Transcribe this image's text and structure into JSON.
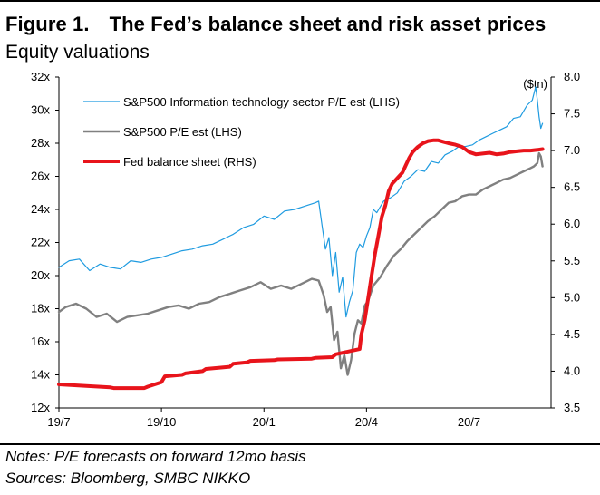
{
  "figure": {
    "label": "Figure 1.",
    "title": "The Fed’s balance sheet and risk asset prices",
    "subtitle": "Equity valuations"
  },
  "notes": [
    "Notes: P/E forecasts on forward 12mo basis",
    "Sources: Bloomberg, SMBC NIKKO"
  ],
  "colors": {
    "it_pe": "#1f9be0",
    "sp_pe": "#808080",
    "fed": "#e8141b"
  },
  "chart_data": {
    "type": "line",
    "title": "Equity valuations",
    "x_tick_labels": [
      "19/7",
      "19/10",
      "20/1",
      "20/4",
      "20/7"
    ],
    "x_tick_positions_months": [
      0,
      3,
      6,
      9,
      12
    ],
    "x_range_months": [
      0,
      14.4
    ],
    "y_left": {
      "range": [
        12,
        32
      ],
      "ticks": [
        12,
        14,
        16,
        18,
        20,
        22,
        24,
        26,
        28,
        30,
        32
      ],
      "tick_labels": [
        "12x",
        "14x",
        "16x",
        "18x",
        "20x",
        "22x",
        "24x",
        "26x",
        "28x",
        "30x",
        "32x"
      ]
    },
    "y_right": {
      "range": [
        3.5,
        8.0
      ],
      "ticks": [
        3.5,
        4.0,
        4.5,
        5.0,
        5.5,
        6.0,
        6.5,
        7.0,
        7.5,
        8.0
      ],
      "tick_labels": [
        "3.5",
        "4.0",
        "4.5",
        "5.0",
        "5.5",
        "6.0",
        "6.5",
        "7.0",
        "7.5",
        "8.0"
      ],
      "unit_label": "($tn)"
    },
    "legend": [
      "S&P500 Information technology sector P/E est (LHS)",
      "S&P500 P/E est (LHS)",
      "Fed balance sheet (RHS)"
    ],
    "series": [
      {
        "name": "S&P500 Information technology sector P/E est (LHS)",
        "axis": "left",
        "x": [
          0,
          0.3,
          0.6,
          0.9,
          1.2,
          1.5,
          1.8,
          2.1,
          2.4,
          2.7,
          3.0,
          3.3,
          3.6,
          3.9,
          4.2,
          4.5,
          4.8,
          5.1,
          5.4,
          5.7,
          6.0,
          6.3,
          6.6,
          6.9,
          7.2,
          7.5,
          7.6,
          7.7,
          7.8,
          7.9,
          8.0,
          8.1,
          8.2,
          8.3,
          8.4,
          8.5,
          8.6,
          8.7,
          8.8,
          8.9,
          9.0,
          9.1,
          9.2,
          9.3,
          9.5,
          9.7,
          9.9,
          10.1,
          10.3,
          10.5,
          10.7,
          10.9,
          11.1,
          11.3,
          11.5,
          11.7,
          11.9,
          12.1,
          12.3,
          12.5,
          12.7,
          12.9,
          13.1,
          13.3,
          13.5,
          13.7,
          13.85,
          13.95,
          14.0,
          14.05,
          14.1,
          14.15
        ],
        "values": [
          20.5,
          20.9,
          21.0,
          20.3,
          20.7,
          20.5,
          20.4,
          20.9,
          20.8,
          21.0,
          21.1,
          21.3,
          21.5,
          21.6,
          21.8,
          21.9,
          22.2,
          22.5,
          22.9,
          23.1,
          23.6,
          23.4,
          23.9,
          24.0,
          24.2,
          24.4,
          24.5,
          23.0,
          21.6,
          22.3,
          20.0,
          21.4,
          19.0,
          19.9,
          17.5,
          18.4,
          19.1,
          21.4,
          21.9,
          21.7,
          22.4,
          22.9,
          24.0,
          23.8,
          24.5,
          24.7,
          25.0,
          25.7,
          26.0,
          26.4,
          26.3,
          26.9,
          26.8,
          27.3,
          27.5,
          27.8,
          27.8,
          27.9,
          28.2,
          28.4,
          28.6,
          28.8,
          29.0,
          29.5,
          29.6,
          30.3,
          30.6,
          31.4,
          30.6,
          29.6,
          28.9,
          29.2
        ]
      },
      {
        "name": "S&P500 P/E est (LHS)",
        "axis": "left",
        "x": [
          0,
          0.2,
          0.5,
          0.8,
          1.1,
          1.4,
          1.7,
          2.0,
          2.3,
          2.6,
          2.9,
          3.2,
          3.5,
          3.8,
          4.1,
          4.4,
          4.7,
          5.0,
          5.3,
          5.6,
          5.9,
          6.2,
          6.5,
          6.8,
          7.1,
          7.4,
          7.6,
          7.75,
          7.85,
          7.95,
          8.05,
          8.15,
          8.25,
          8.35,
          8.45,
          8.55,
          8.65,
          8.75,
          8.85,
          8.95,
          9.05,
          9.2,
          9.4,
          9.6,
          9.8,
          10.0,
          10.2,
          10.4,
          10.6,
          10.8,
          11.0,
          11.2,
          11.4,
          11.6,
          11.8,
          12.0,
          12.2,
          12.4,
          12.6,
          12.8,
          13.0,
          13.2,
          13.4,
          13.6,
          13.8,
          13.9,
          14.0,
          14.05,
          14.1,
          14.15
        ],
        "values": [
          17.8,
          18.1,
          18.3,
          18.0,
          17.5,
          17.7,
          17.2,
          17.5,
          17.6,
          17.7,
          17.9,
          18.1,
          18.2,
          18.0,
          18.3,
          18.4,
          18.7,
          18.9,
          19.1,
          19.3,
          19.6,
          19.2,
          19.4,
          19.2,
          19.5,
          19.8,
          19.7,
          18.8,
          17.8,
          18.1,
          16.1,
          16.6,
          14.4,
          15.2,
          14.0,
          14.9,
          16.5,
          17.3,
          17.1,
          18.2,
          18.5,
          19.4,
          19.9,
          20.6,
          21.2,
          21.6,
          22.1,
          22.5,
          22.9,
          23.3,
          23.6,
          24.0,
          24.4,
          24.5,
          24.8,
          24.9,
          24.9,
          25.2,
          25.4,
          25.6,
          25.8,
          25.9,
          26.1,
          26.3,
          26.5,
          26.6,
          26.8,
          27.4,
          27.2,
          26.6
        ]
      },
      {
        "name": "Fed balance sheet (RHS)",
        "axis": "right",
        "x": [
          0,
          0.8,
          1.5,
          1.6,
          2.5,
          2.6,
          3.0,
          3.1,
          3.6,
          3.7,
          4.2,
          4.3,
          5.0,
          5.1,
          5.5,
          5.6,
          6.3,
          6.4,
          7.4,
          7.5,
          8.0,
          8.1,
          8.8,
          8.85,
          8.95,
          9.05,
          9.15,
          9.25,
          9.35,
          9.45,
          9.55,
          9.65,
          9.75,
          9.85,
          9.95,
          10.05,
          10.15,
          10.25,
          10.35,
          10.5,
          10.65,
          10.8,
          10.95,
          11.1,
          11.25,
          11.4,
          11.6,
          11.8,
          12.0,
          12.2,
          12.4,
          12.6,
          12.8,
          13.0,
          13.2,
          13.4,
          13.6,
          13.8,
          14.0,
          14.15
        ],
        "values": [
          3.82,
          3.8,
          3.78,
          3.77,
          3.77,
          3.79,
          3.85,
          3.93,
          3.95,
          3.97,
          4.0,
          4.03,
          4.06,
          4.1,
          4.12,
          4.14,
          4.15,
          4.16,
          4.17,
          4.18,
          4.19,
          4.23,
          4.3,
          4.5,
          4.7,
          5.0,
          5.3,
          5.6,
          5.85,
          6.1,
          6.25,
          6.45,
          6.55,
          6.6,
          6.65,
          6.7,
          6.8,
          6.9,
          6.98,
          7.05,
          7.1,
          7.13,
          7.14,
          7.14,
          7.12,
          7.1,
          7.08,
          7.05,
          6.98,
          6.95,
          6.96,
          6.97,
          6.95,
          6.96,
          6.98,
          6.99,
          7.0,
          7.0,
          7.01,
          7.02
        ]
      }
    ]
  }
}
